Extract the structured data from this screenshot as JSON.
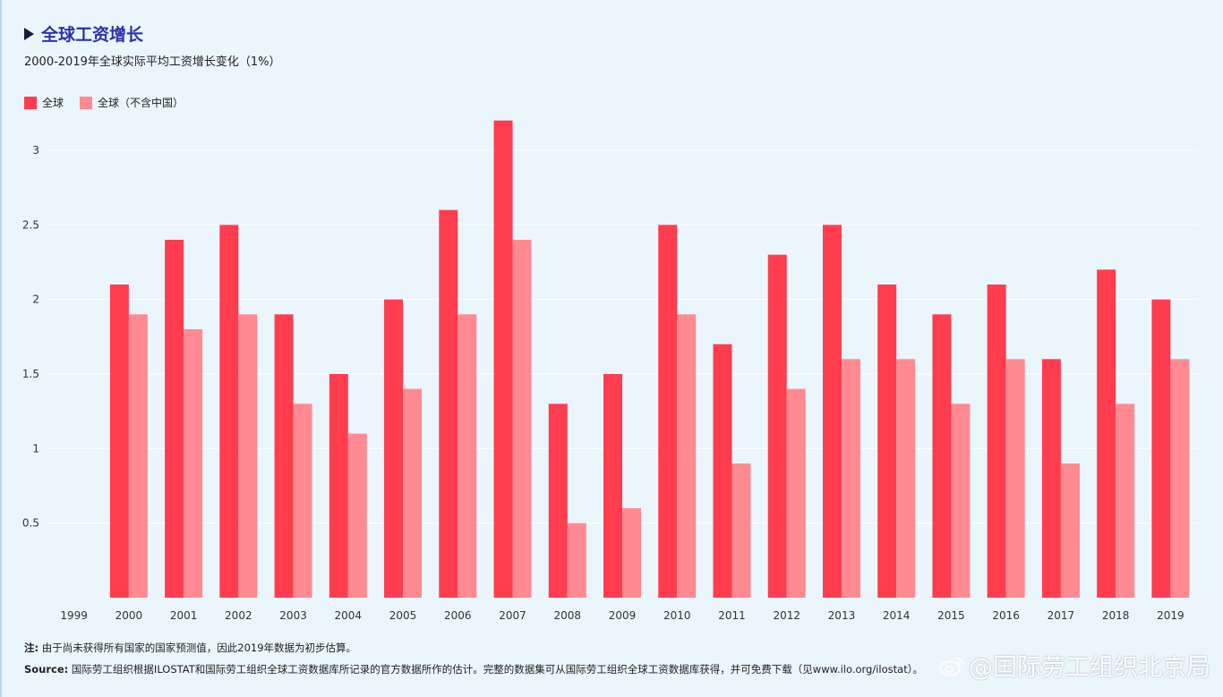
{
  "header": {
    "title": "全球工资增长",
    "subtitle": "2000-2019年全球实际平均工资增长变化（1%）"
  },
  "legend": [
    {
      "label": "全球",
      "color": "#ff3d4f"
    },
    {
      "label": "全球（不含中国）",
      "color": "#ff8a92"
    }
  ],
  "chart_data": {
    "type": "bar",
    "categories": [
      "1999",
      "2000",
      "2001",
      "2002",
      "2003",
      "2004",
      "2005",
      "2006",
      "2007",
      "2008",
      "2009",
      "2010",
      "2011",
      "2012",
      "2013",
      "2014",
      "2015",
      "2016",
      "2017",
      "2018",
      "2019"
    ],
    "series": [
      {
        "name": "全球",
        "color": "#ff3d4f",
        "values": [
          null,
          2.1,
          2.4,
          2.5,
          1.9,
          1.5,
          2.0,
          2.6,
          3.2,
          1.3,
          1.5,
          2.5,
          1.7,
          2.3,
          2.5,
          2.1,
          1.9,
          2.1,
          1.6,
          2.2,
          2.0
        ]
      },
      {
        "name": "全球（不含中国）",
        "color": "#ff8a92",
        "values": [
          null,
          1.9,
          1.8,
          1.9,
          1.3,
          1.1,
          1.4,
          1.9,
          2.4,
          0.5,
          0.6,
          1.9,
          0.9,
          1.4,
          1.6,
          1.6,
          1.3,
          1.6,
          0.9,
          1.3,
          1.6
        ]
      }
    ],
    "ylim": [
      0,
      3.3
    ],
    "yticks": [
      0.5,
      1,
      1.5,
      2,
      2.5,
      3
    ],
    "ytick_labels": [
      "0.5",
      "1",
      "1.5",
      "2",
      "2.5",
      "3"
    ],
    "grid": true,
    "legend_position": "top-left"
  },
  "footer": {
    "note_label": "注:",
    "note_text": "由于尚未获得所有国家的国家预测值，因此2019年数据为初步估算。",
    "source_label": "Source:",
    "source_text": "国际劳工组织根据ILOSTAT和国际劳工组织全球工资数据库所记录的官方数据所作的估计。完整的数据集可从国际劳工组织全球工资数据库获得，并可免费下载（见www.ilo.org/ilostat）。"
  },
  "watermark": {
    "text": "@国际劳工组织北京局"
  }
}
